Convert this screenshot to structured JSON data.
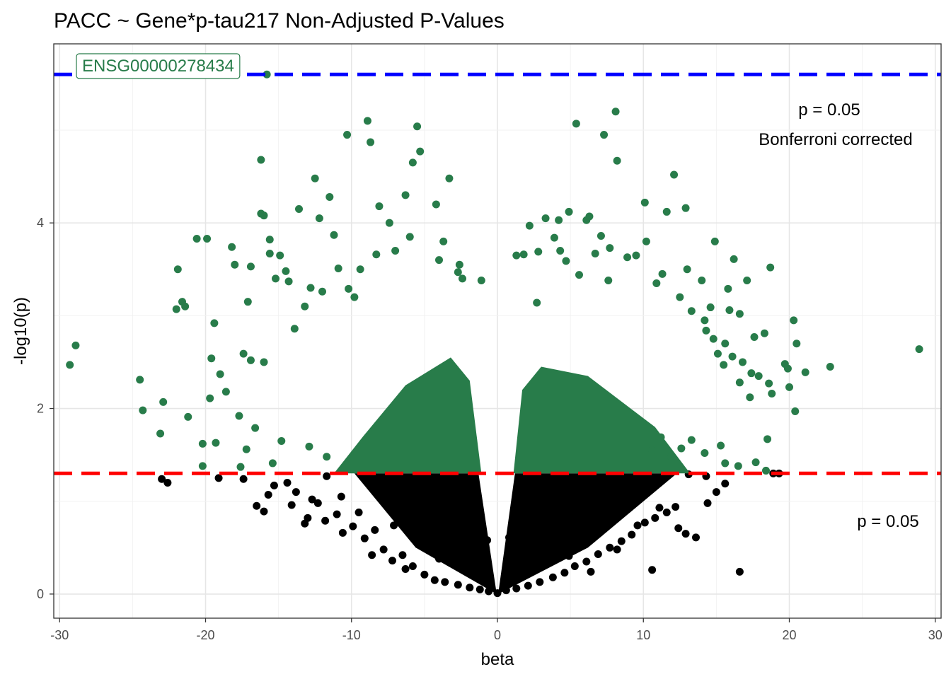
{
  "chart_data": {
    "type": "scatter",
    "title": "PACC ~ Gene*p-tau217 Non-Adjusted P-Values",
    "xlabel": "beta",
    "ylabel": "-log10(p)",
    "xlim": [
      -30.4,
      30.4
    ],
    "ylim": [
      -0.26,
      5.93
    ],
    "x_ticks": [
      -30,
      -20,
      -10,
      0,
      10,
      20,
      30
    ],
    "x_tick_labels": [
      "-30",
      "-20",
      "-10",
      "0",
      "10",
      "20",
      "30"
    ],
    "y_ticks": [
      0,
      2,
      4
    ],
    "y_tick_labels": [
      "0",
      "2",
      "4"
    ],
    "grid": true,
    "colors": {
      "significant": "#287C4A",
      "non_significant": "#000000",
      "bonferroni_line": "#0000FF",
      "nominal_line": "#FF0000"
    },
    "reference_lines": [
      {
        "y": 1.301,
        "color": "#FF0000",
        "style": "dashed",
        "label": "p = 0.05"
      },
      {
        "y": 5.6,
        "color": "#0000FF",
        "style": "dashed",
        "label": "p = 0.05",
        "sublabel": "Bonferroni corrected"
      }
    ],
    "labeled_point": {
      "label": "ENSG00000278434",
      "x": -15.8,
      "y": 5.6
    },
    "series": [
      {
        "points": [
          [
            -29.3,
            2.47
          ],
          [
            -28.9,
            2.68
          ],
          [
            -24.5,
            2.31
          ],
          [
            -24.3,
            1.98
          ],
          [
            -23.1,
            1.73
          ],
          [
            -22.9,
            2.07
          ],
          [
            -22.0,
            3.07
          ],
          [
            -21.9,
            3.5
          ],
          [
            -21.6,
            3.15
          ],
          [
            -21.4,
            3.1
          ],
          [
            -21.2,
            1.91
          ],
          [
            -20.6,
            3.83
          ],
          [
            -20.2,
            1.38
          ],
          [
            -19.9,
            3.83
          ],
          [
            -19.6,
            2.54
          ],
          [
            -19.7,
            2.11
          ],
          [
            -19.4,
            2.92
          ],
          [
            -19.3,
            1.63
          ],
          [
            -19.0,
            2.37
          ],
          [
            -18.6,
            2.18
          ],
          [
            -18.2,
            3.74
          ],
          [
            -18.0,
            3.55
          ],
          [
            -17.7,
            1.92
          ],
          [
            -17.4,
            2.59
          ],
          [
            -17.1,
            3.15
          ],
          [
            -16.9,
            2.52
          ],
          [
            -16.2,
            4.1
          ],
          [
            -16.0,
            4.08
          ],
          [
            -15.6,
            3.82
          ],
          [
            -15.6,
            3.67
          ],
          [
            -16.9,
            3.53
          ],
          [
            -16.6,
            1.79
          ],
          [
            -15.2,
            3.4
          ],
          [
            -14.9,
            3.65
          ],
          [
            -14.5,
            3.48
          ],
          [
            -14.3,
            3.37
          ],
          [
            -13.6,
            4.15
          ],
          [
            -13.2,
            3.1
          ],
          [
            -12.8,
            3.3
          ],
          [
            -12.5,
            4.48
          ],
          [
            -12.2,
            4.05
          ],
          [
            -11.5,
            4.28
          ],
          [
            -11.2,
            3.87
          ],
          [
            -10.9,
            3.51
          ],
          [
            -10.3,
            4.95
          ],
          [
            -10.2,
            3.29
          ],
          [
            -9.4,
            3.5
          ],
          [
            -8.9,
            5.1
          ],
          [
            -8.7,
            4.87
          ],
          [
            -8.1,
            4.18
          ],
          [
            -7.4,
            4.0
          ],
          [
            -6.3,
            4.3
          ],
          [
            -6.0,
            3.85
          ],
          [
            -5.8,
            4.65
          ],
          [
            -5.5,
            5.04
          ],
          [
            -5.3,
            4.77
          ],
          [
            -4.2,
            4.2
          ],
          [
            -4.0,
            3.6
          ],
          [
            -3.3,
            4.48
          ],
          [
            -2.4,
            3.4
          ],
          [
            -2.7,
            3.47
          ],
          [
            -1.1,
            3.38
          ],
          [
            -16.2,
            4.68
          ],
          [
            -12.0,
            3.26
          ],
          [
            -8.3,
            3.66
          ],
          [
            -7.0,
            3.7
          ],
          [
            -3.7,
            3.8
          ],
          [
            -2.6,
            3.55
          ],
          [
            -9.8,
            3.2
          ],
          [
            -13.9,
            2.86
          ],
          [
            -16.0,
            2.5
          ],
          [
            -17.2,
            1.56
          ],
          [
            -15.4,
            1.41
          ],
          [
            -14.8,
            1.65
          ],
          [
            -12.9,
            1.59
          ],
          [
            -11.7,
            1.48
          ],
          [
            -17.6,
            1.37
          ],
          [
            -20.2,
            1.62
          ],
          [
            1.3,
            3.65
          ],
          [
            1.8,
            3.66
          ],
          [
            2.2,
            3.97
          ],
          [
            2.8,
            3.69
          ],
          [
            2.7,
            3.14
          ],
          [
            3.3,
            4.05
          ],
          [
            3.9,
            3.84
          ],
          [
            4.2,
            4.03
          ],
          [
            4.3,
            3.7
          ],
          [
            4.7,
            3.59
          ],
          [
            4.9,
            4.12
          ],
          [
            5.4,
            5.07
          ],
          [
            5.6,
            3.44
          ],
          [
            6.1,
            4.03
          ],
          [
            6.3,
            4.07
          ],
          [
            6.7,
            3.67
          ],
          [
            7.1,
            3.86
          ],
          [
            7.3,
            4.95
          ],
          [
            7.6,
            3.38
          ],
          [
            7.7,
            3.73
          ],
          [
            8.1,
            5.2
          ],
          [
            8.2,
            4.67
          ],
          [
            8.9,
            3.63
          ],
          [
            9.5,
            3.65
          ],
          [
            10.1,
            4.22
          ],
          [
            10.2,
            3.8
          ],
          [
            10.9,
            3.35
          ],
          [
            11.3,
            3.45
          ],
          [
            11.6,
            4.12
          ],
          [
            12.1,
            4.52
          ],
          [
            12.5,
            3.2
          ],
          [
            12.9,
            4.16
          ],
          [
            13.0,
            3.5
          ],
          [
            13.3,
            3.05
          ],
          [
            14.0,
            3.38
          ],
          [
            14.2,
            2.95
          ],
          [
            14.8,
            2.75
          ],
          [
            14.3,
            2.84
          ],
          [
            14.6,
            3.09
          ],
          [
            14.9,
            3.8
          ],
          [
            15.1,
            2.59
          ],
          [
            15.5,
            2.47
          ],
          [
            15.6,
            2.7
          ],
          [
            15.8,
            3.29
          ],
          [
            15.9,
            3.06
          ],
          [
            16.1,
            2.56
          ],
          [
            16.2,
            3.61
          ],
          [
            16.6,
            2.28
          ],
          [
            16.6,
            3.02
          ],
          [
            16.8,
            2.5
          ],
          [
            17.1,
            3.38
          ],
          [
            17.3,
            2.12
          ],
          [
            17.4,
            2.38
          ],
          [
            17.6,
            2.77
          ],
          [
            17.9,
            2.35
          ],
          [
            18.3,
            2.81
          ],
          [
            18.5,
            1.67
          ],
          [
            18.6,
            2.27
          ],
          [
            18.7,
            3.52
          ],
          [
            18.8,
            2.16
          ],
          [
            19.7,
            2.48
          ],
          [
            19.9,
            2.43
          ],
          [
            20.0,
            2.23
          ],
          [
            20.3,
            2.95
          ],
          [
            20.4,
            1.97
          ],
          [
            20.5,
            2.7
          ],
          [
            21.1,
            2.39
          ],
          [
            22.8,
            2.45
          ],
          [
            28.9,
            2.64
          ],
          [
            16.5,
            1.38
          ],
          [
            17.7,
            1.42
          ],
          [
            18.4,
            1.33
          ],
          [
            15.6,
            1.41
          ],
          [
            15.3,
            1.6
          ],
          [
            14.2,
            1.52
          ],
          [
            13.3,
            1.66
          ],
          [
            12.6,
            1.57
          ],
          [
            11.9,
            1.48
          ],
          [
            11.2,
            1.69
          ],
          [
            10.6,
            1.55
          ],
          [
            -15.8,
            5.6
          ]
        ]
      },
      {
        "points": [
          [
            -23.0,
            1.24
          ],
          [
            -22.6,
            1.2
          ],
          [
            -19.1,
            1.25
          ],
          [
            -16.5,
            0.95
          ],
          [
            -16.0,
            0.89
          ],
          [
            -15.3,
            1.17
          ],
          [
            -14.1,
            0.96
          ],
          [
            -13.8,
            1.1
          ],
          [
            -13.2,
            0.76
          ],
          [
            -12.7,
            1.02
          ],
          [
            -12.3,
            0.98
          ],
          [
            -11.7,
            1.27
          ],
          [
            -11.0,
            0.86
          ],
          [
            -10.6,
            0.66
          ],
          [
            -9.9,
            0.73
          ],
          [
            -9.1,
            0.6
          ],
          [
            -8.6,
            0.42
          ],
          [
            -7.8,
            0.48
          ],
          [
            -7.2,
            0.36
          ],
          [
            -6.5,
            0.42
          ],
          [
            -5.8,
            0.3
          ],
          [
            -5.0,
            0.21
          ],
          [
            -4.3,
            0.15
          ],
          [
            -3.6,
            0.13
          ],
          [
            -2.7,
            0.1
          ],
          [
            -1.9,
            0.07
          ],
          [
            -1.2,
            0.05
          ],
          [
            -0.6,
            0.03
          ],
          [
            0.0,
            0.01
          ],
          [
            0.6,
            0.04
          ],
          [
            1.3,
            0.06
          ],
          [
            2.1,
            0.09
          ],
          [
            2.9,
            0.13
          ],
          [
            3.8,
            0.18
          ],
          [
            4.6,
            0.23
          ],
          [
            5.3,
            0.3
          ],
          [
            6.1,
            0.35
          ],
          [
            6.9,
            0.43
          ],
          [
            7.7,
            0.5
          ],
          [
            8.5,
            0.57
          ],
          [
            9.2,
            0.64
          ],
          [
            10.1,
            0.77
          ],
          [
            10.8,
            0.82
          ],
          [
            11.6,
            0.88
          ],
          [
            12.2,
            0.94
          ],
          [
            12.9,
            0.65
          ],
          [
            13.6,
            0.61
          ],
          [
            14.4,
            0.98
          ],
          [
            15.0,
            1.1
          ],
          [
            15.6,
            1.19
          ],
          [
            16.6,
            0.24
          ],
          [
            18.9,
            1.3
          ],
          [
            19.3,
            1.3
          ],
          [
            10.6,
            0.26
          ],
          [
            13.1,
            1.29
          ],
          [
            14.3,
            1.27
          ],
          [
            12.4,
            0.71
          ],
          [
            11.1,
            0.93
          ],
          [
            9.6,
            0.74
          ],
          [
            8.2,
            0.48
          ],
          [
            7.0,
            0.66
          ],
          [
            5.5,
            0.58
          ],
          [
            4.1,
            0.75
          ],
          [
            2.6,
            1.1
          ],
          [
            1.5,
            0.88
          ],
          [
            0.8,
            0.61
          ],
          [
            -0.7,
            0.58
          ],
          [
            -1.6,
            0.84
          ],
          [
            -2.5,
            1.05
          ],
          [
            -3.4,
            0.92
          ],
          [
            -4.6,
            0.72
          ],
          [
            -5.8,
            0.86
          ],
          [
            -7.1,
            0.74
          ],
          [
            -8.4,
            0.69
          ],
          [
            -9.5,
            0.88
          ],
          [
            -10.7,
            1.05
          ],
          [
            -11.8,
            0.79
          ],
          [
            -13.0,
            0.82
          ],
          [
            -14.4,
            1.2
          ],
          [
            -15.7,
            1.07
          ],
          [
            -17.4,
            1.24
          ],
          [
            -1.1,
            0.23
          ],
          [
            -2.0,
            0.35
          ],
          [
            1.9,
            0.34
          ],
          [
            3.1,
            0.45
          ],
          [
            -3.1,
            0.51
          ],
          [
            -4.0,
            0.38
          ],
          [
            4.9,
            0.41
          ],
          [
            6.4,
            0.24
          ],
          [
            -6.3,
            0.27
          ]
        ]
      }
    ]
  }
}
